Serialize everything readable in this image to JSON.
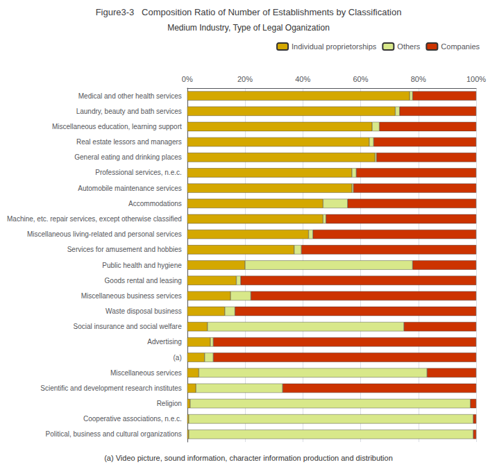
{
  "chart_data": {
    "type": "bar",
    "orientation": "horizontal",
    "stacked": true,
    "title": "Figure3-3   Composition Ratio of Number of Establishments by Classification",
    "subtitle": "Medium Industry, Type of Legal Oganization",
    "annotations": [
      "(a) Video picture, sound information, character information production and distribution"
    ],
    "categories": [
      "Medical and other health services",
      "Laundry, beauty and bath services",
      "Miscellaneous education, learning support",
      "Real estate lessors and managers",
      "General eating and drinking places",
      "Professional services, n.e.c.",
      "Automobile maintenance services",
      "Accommodations",
      "Machine, etc. repair services, except otherwise classified",
      "Miscellaneous living-related and personal services",
      "Services for amusement and hobbies",
      "Public health and hygiene",
      "Goods rental and leasing",
      "Miscellaneous business services",
      "Waste disposal business",
      "Social insurance and social welfare",
      "Advertising",
      "(a)",
      "Miscellaneous services",
      "Scientific and development research institutes",
      "Religion",
      "Cooperative associations, n.e.c.",
      "Political, business and cultural organizations"
    ],
    "series": [
      {
        "name": "Individual proprietorships",
        "color": "#D4A800",
        "values": [
          77.0,
          72.0,
          64.0,
          63.0,
          65.0,
          57.0,
          57.0,
          47.0,
          47.0,
          42.0,
          37.0,
          20.0,
          17.0,
          15.0,
          13.0,
          7.0,
          8.0,
          6.0,
          4.0,
          3.0,
          1.0,
          0.5,
          0.5
        ]
      },
      {
        "name": "Others",
        "color": "#D8E88A",
        "values": [
          1.0,
          1.5,
          2.5,
          1.5,
          0.5,
          1.5,
          0.5,
          8.5,
          1.0,
          1.5,
          2.5,
          58.0,
          1.5,
          7.0,
          3.5,
          68.0,
          1.0,
          3.0,
          79.0,
          30.0,
          97.0,
          98.5,
          98.5
        ]
      },
      {
        "name": "Companies",
        "color": "#CC3300",
        "values": [
          22.0,
          26.5,
          33.5,
          35.5,
          34.5,
          41.5,
          42.5,
          44.5,
          52.0,
          56.5,
          60.5,
          22.0,
          81.5,
          78.0,
          83.5,
          25.0,
          91.0,
          91.0,
          17.0,
          67.0,
          2.0,
          1.0,
          1.0
        ]
      }
    ],
    "xlim": [
      0,
      100
    ],
    "xticks": [
      {
        "value": 0,
        "label": "0%"
      },
      {
        "value": 20,
        "label": "20%"
      },
      {
        "value": 40,
        "label": "40%"
      },
      {
        "value": 60,
        "label": "60%"
      },
      {
        "value": 80,
        "label": "80%"
      },
      {
        "value": 100,
        "label": "100%"
      }
    ],
    "grid": true,
    "legend": "upper right"
  }
}
